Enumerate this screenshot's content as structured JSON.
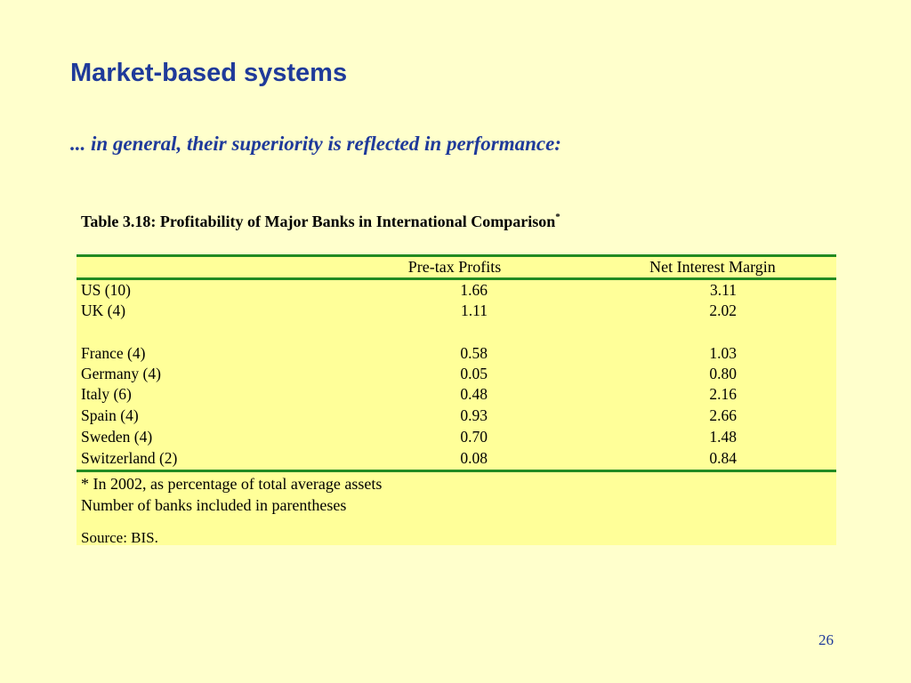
{
  "slide": {
    "title": "Market-based systems",
    "subtitle": "... in general, their superiority is reflected in performance:",
    "page_number": "26"
  },
  "table": {
    "caption": "Table 3.18: Profitability of Major Banks in International Comparison",
    "caption_mark": "*",
    "headers": [
      "",
      "Pre-tax Profits",
      "Net Interest Margin"
    ],
    "rows": [
      {
        "country": "US (10)",
        "pretax": "1.66",
        "nim": "3.11"
      },
      {
        "country": "UK (4)",
        "pretax": "1.11",
        "nim": "2.02"
      },
      {
        "country": "France (4)",
        "pretax": "0.58",
        "nim": "1.03"
      },
      {
        "country": "Germany (4)",
        "pretax": "0.05",
        "nim": "0.80"
      },
      {
        "country": "Italy (6)",
        "pretax": "0.48",
        "nim": "2.16"
      },
      {
        "country": "Spain (4)",
        "pretax": "0.93",
        "nim": "2.66"
      },
      {
        "country": "Sweden (4)",
        "pretax": "0.70",
        "nim": "1.48"
      },
      {
        "country": "Switzerland (2)",
        "pretax": "0.08",
        "nim": "0.84"
      }
    ],
    "notes": [
      "* In 2002, as percentage of total average assets",
      "Number of banks included in parentheses"
    ],
    "source": "Source: BIS."
  },
  "colors": {
    "background": "#FFFFCC",
    "table_fill": "#FFFF99",
    "rule": "#228B22",
    "heading": "#1F3A9A"
  }
}
